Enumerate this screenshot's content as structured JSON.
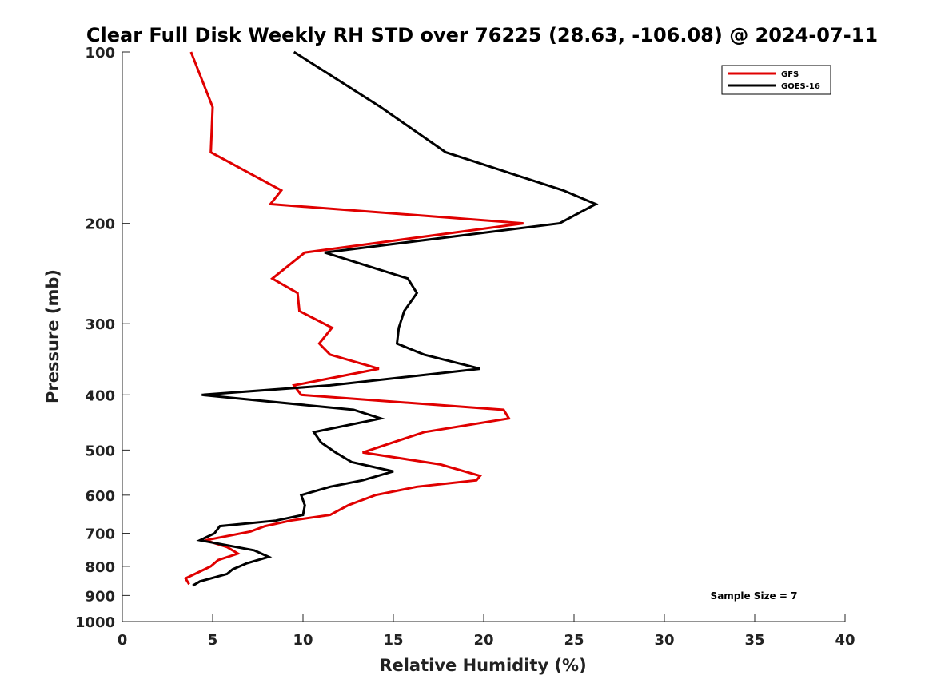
{
  "chart_data": {
    "type": "line",
    "title": "Clear Full Disk Weekly RH STD over 76225 (28.63, -106.08) @ 2024-07-11",
    "xlabel": "Relative Humidity (%)",
    "ylabel": "Pressure (mb)",
    "xlim": [
      0,
      40
    ],
    "ylim": [
      100,
      1000
    ],
    "yscale": "log",
    "y_reversed": true,
    "x_ticks": [
      "0",
      "5",
      "10",
      "15",
      "20",
      "25",
      "30",
      "35",
      "40"
    ],
    "y_ticks": [
      "100",
      "200",
      "300",
      "400",
      "500",
      "600",
      "700",
      "800",
      "900",
      "1000"
    ],
    "legend": {
      "position": "top-right"
    },
    "annotation": "Sample Size = 7",
    "series": [
      {
        "name": "GFS",
        "color": "#e00000",
        "points": [
          [
            3.8,
            100
          ],
          [
            5.0,
            125
          ],
          [
            4.9,
            150
          ],
          [
            8.8,
            175
          ],
          [
            8.2,
            185
          ],
          [
            22.2,
            200
          ],
          [
            10.1,
            225
          ],
          [
            8.3,
            250
          ],
          [
            9.7,
            265
          ],
          [
            9.8,
            285
          ],
          [
            11.6,
            305
          ],
          [
            10.9,
            325
          ],
          [
            11.5,
            340
          ],
          [
            14.2,
            360
          ],
          [
            9.5,
            385
          ],
          [
            9.9,
            400
          ],
          [
            21.1,
            425
          ],
          [
            21.4,
            440
          ],
          [
            16.7,
            465
          ],
          [
            13.3,
            505
          ],
          [
            17.6,
            530
          ],
          [
            19.8,
            555
          ],
          [
            19.6,
            565
          ],
          [
            16.3,
            580
          ],
          [
            14.0,
            600
          ],
          [
            12.5,
            625
          ],
          [
            11.5,
            650
          ],
          [
            9.3,
            665
          ],
          [
            7.9,
            680
          ],
          [
            7.1,
            695
          ],
          [
            4.6,
            720
          ],
          [
            5.8,
            740
          ],
          [
            6.4,
            760
          ],
          [
            5.3,
            780
          ],
          [
            4.9,
            800
          ],
          [
            3.5,
            840
          ],
          [
            3.7,
            860
          ]
        ]
      },
      {
        "name": "GOES-16",
        "color": "#000000",
        "points": [
          [
            9.5,
            100
          ],
          [
            14.3,
            125
          ],
          [
            17.9,
            150
          ],
          [
            24.4,
            175
          ],
          [
            26.2,
            185
          ],
          [
            24.2,
            200
          ],
          [
            11.2,
            225
          ],
          [
            15.8,
            250
          ],
          [
            16.3,
            265
          ],
          [
            15.6,
            285
          ],
          [
            15.3,
            305
          ],
          [
            15.2,
            325
          ],
          [
            16.7,
            340
          ],
          [
            19.8,
            360
          ],
          [
            11.5,
            385
          ],
          [
            4.4,
            400
          ],
          [
            12.8,
            425
          ],
          [
            14.3,
            440
          ],
          [
            10.6,
            465
          ],
          [
            11.0,
            485
          ],
          [
            11.8,
            505
          ],
          [
            12.7,
            525
          ],
          [
            15.0,
            545
          ],
          [
            13.3,
            565
          ],
          [
            11.5,
            580
          ],
          [
            9.9,
            600
          ],
          [
            10.1,
            625
          ],
          [
            10.0,
            650
          ],
          [
            8.5,
            665
          ],
          [
            5.4,
            680
          ],
          [
            5.1,
            700
          ],
          [
            4.3,
            720
          ],
          [
            7.3,
            750
          ],
          [
            8.1,
            770
          ],
          [
            6.9,
            790
          ],
          [
            6.1,
            810
          ],
          [
            5.8,
            825
          ],
          [
            4.3,
            850
          ],
          [
            3.9,
            865
          ]
        ]
      }
    ]
  }
}
